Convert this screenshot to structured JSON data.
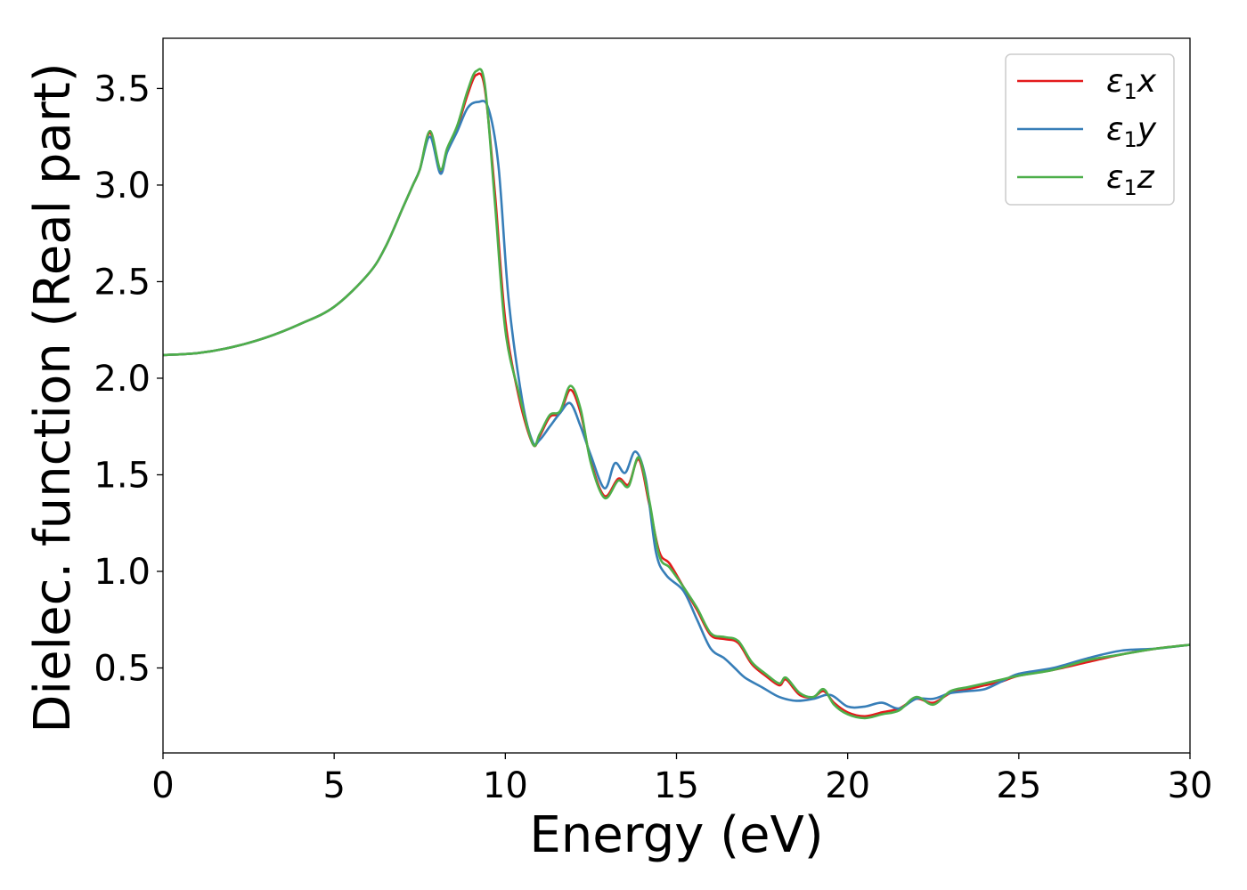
{
  "chart_data": {
    "type": "line",
    "title": "",
    "xlabel": "Energy (eV)",
    "ylabel": "Dielec. function (Real part)",
    "xlim": [
      0,
      30
    ],
    "ylim": [
      0.06,
      3.76
    ],
    "xticks": [
      "0",
      "5",
      "10",
      "15",
      "20",
      "25",
      "30"
    ],
    "yticks": [
      "0.5",
      "1.0",
      "1.5",
      "2.0",
      "2.5",
      "3.0",
      "3.5"
    ],
    "grid": false,
    "legend_position": "top-right",
    "series": [
      {
        "name": "ε₁x",
        "symbol": "ε",
        "sub": "1",
        "axis": "x",
        "color": "#e41a1c",
        "points": [
          [
            0,
            2.12
          ],
          [
            1,
            2.13
          ],
          [
            2,
            2.16
          ],
          [
            3,
            2.21
          ],
          [
            4,
            2.28
          ],
          [
            5,
            2.37
          ],
          [
            6,
            2.54
          ],
          [
            6.5,
            2.68
          ],
          [
            7,
            2.88
          ],
          [
            7.3,
            3.0
          ],
          [
            7.5,
            3.08
          ],
          [
            7.8,
            3.27
          ],
          [
            8.1,
            3.07
          ],
          [
            8.3,
            3.18
          ],
          [
            8.6,
            3.3
          ],
          [
            8.9,
            3.47
          ],
          [
            9.15,
            3.57
          ],
          [
            9.4,
            3.5
          ],
          [
            9.7,
            2.95
          ],
          [
            10.0,
            2.3
          ],
          [
            10.4,
            1.9
          ],
          [
            10.8,
            1.66
          ],
          [
            11.0,
            1.7
          ],
          [
            11.3,
            1.8
          ],
          [
            11.6,
            1.82
          ],
          [
            11.9,
            1.94
          ],
          [
            12.2,
            1.82
          ],
          [
            12.5,
            1.57
          ],
          [
            12.9,
            1.39
          ],
          [
            13.3,
            1.48
          ],
          [
            13.6,
            1.45
          ],
          [
            13.9,
            1.58
          ],
          [
            14.2,
            1.35
          ],
          [
            14.5,
            1.1
          ],
          [
            14.8,
            1.04
          ],
          [
            15.2,
            0.92
          ],
          [
            15.6,
            0.8
          ],
          [
            16.0,
            0.67
          ],
          [
            16.4,
            0.65
          ],
          [
            16.8,
            0.63
          ],
          [
            17.2,
            0.52
          ],
          [
            17.6,
            0.46
          ],
          [
            18.0,
            0.41
          ],
          [
            18.2,
            0.44
          ],
          [
            18.6,
            0.36
          ],
          [
            19.0,
            0.35
          ],
          [
            19.3,
            0.38
          ],
          [
            19.6,
            0.32
          ],
          [
            20.0,
            0.27
          ],
          [
            20.5,
            0.25
          ],
          [
            21.0,
            0.27
          ],
          [
            21.5,
            0.29
          ],
          [
            22.0,
            0.34
          ],
          [
            22.5,
            0.32
          ],
          [
            23.0,
            0.37
          ],
          [
            23.5,
            0.39
          ],
          [
            24.0,
            0.41
          ],
          [
            24.5,
            0.43
          ],
          [
            25.0,
            0.46
          ],
          [
            26.0,
            0.49
          ],
          [
            27.0,
            0.53
          ],
          [
            28.0,
            0.57
          ],
          [
            29.0,
            0.6
          ],
          [
            30.0,
            0.62
          ]
        ]
      },
      {
        "name": "ε₁y",
        "symbol": "ε",
        "sub": "1",
        "axis": "y",
        "color": "#377eb8",
        "points": [
          [
            0,
            2.12
          ],
          [
            1,
            2.13
          ],
          [
            2,
            2.16
          ],
          [
            3,
            2.21
          ],
          [
            4,
            2.28
          ],
          [
            5,
            2.37
          ],
          [
            6,
            2.54
          ],
          [
            6.5,
            2.68
          ],
          [
            7,
            2.88
          ],
          [
            7.3,
            3.0
          ],
          [
            7.5,
            3.08
          ],
          [
            7.8,
            3.25
          ],
          [
            8.1,
            3.06
          ],
          [
            8.3,
            3.17
          ],
          [
            8.6,
            3.28
          ],
          [
            8.9,
            3.4
          ],
          [
            9.2,
            3.43
          ],
          [
            9.5,
            3.4
          ],
          [
            9.8,
            3.1
          ],
          [
            10.1,
            2.4
          ],
          [
            10.5,
            1.88
          ],
          [
            10.8,
            1.67
          ],
          [
            11.0,
            1.68
          ],
          [
            11.3,
            1.75
          ],
          [
            11.6,
            1.82
          ],
          [
            11.9,
            1.87
          ],
          [
            12.2,
            1.75
          ],
          [
            12.5,
            1.6
          ],
          [
            12.9,
            1.43
          ],
          [
            13.2,
            1.56
          ],
          [
            13.5,
            1.51
          ],
          [
            13.8,
            1.62
          ],
          [
            14.1,
            1.48
          ],
          [
            14.4,
            1.1
          ],
          [
            14.7,
            0.98
          ],
          [
            15.2,
            0.9
          ],
          [
            15.6,
            0.75
          ],
          [
            16.0,
            0.6
          ],
          [
            16.4,
            0.55
          ],
          [
            16.7,
            0.5
          ],
          [
            17.0,
            0.45
          ],
          [
            17.5,
            0.4
          ],
          [
            18.0,
            0.35
          ],
          [
            18.5,
            0.33
          ],
          [
            19.0,
            0.34
          ],
          [
            19.5,
            0.36
          ],
          [
            20.0,
            0.3
          ],
          [
            20.5,
            0.3
          ],
          [
            21.0,
            0.32
          ],
          [
            21.5,
            0.29
          ],
          [
            22.0,
            0.34
          ],
          [
            22.5,
            0.34
          ],
          [
            23.0,
            0.37
          ],
          [
            23.5,
            0.38
          ],
          [
            24.0,
            0.39
          ],
          [
            24.5,
            0.43
          ],
          [
            25.0,
            0.47
          ],
          [
            26.0,
            0.5
          ],
          [
            27.0,
            0.55
          ],
          [
            28.0,
            0.59
          ],
          [
            29.0,
            0.6
          ],
          [
            30.0,
            0.62
          ]
        ]
      },
      {
        "name": "ε₁z",
        "symbol": "ε",
        "sub": "1",
        "axis": "z",
        "color": "#4daf4a",
        "points": [
          [
            0,
            2.12
          ],
          [
            1,
            2.13
          ],
          [
            2,
            2.16
          ],
          [
            3,
            2.21
          ],
          [
            4,
            2.28
          ],
          [
            5,
            2.37
          ],
          [
            6,
            2.54
          ],
          [
            6.5,
            2.68
          ],
          [
            7,
            2.88
          ],
          [
            7.3,
            3.0
          ],
          [
            7.5,
            3.08
          ],
          [
            7.8,
            3.28
          ],
          [
            8.1,
            3.08
          ],
          [
            8.3,
            3.19
          ],
          [
            8.6,
            3.31
          ],
          [
            8.9,
            3.49
          ],
          [
            9.15,
            3.59
          ],
          [
            9.4,
            3.52
          ],
          [
            9.7,
            2.9
          ],
          [
            10.0,
            2.25
          ],
          [
            10.4,
            1.92
          ],
          [
            10.8,
            1.66
          ],
          [
            11.0,
            1.71
          ],
          [
            11.3,
            1.81
          ],
          [
            11.6,
            1.83
          ],
          [
            11.9,
            1.96
          ],
          [
            12.2,
            1.84
          ],
          [
            12.5,
            1.56
          ],
          [
            12.9,
            1.38
          ],
          [
            13.3,
            1.47
          ],
          [
            13.6,
            1.44
          ],
          [
            13.9,
            1.59
          ],
          [
            14.2,
            1.37
          ],
          [
            14.5,
            1.08
          ],
          [
            14.8,
            1.02
          ],
          [
            15.2,
            0.92
          ],
          [
            15.6,
            0.81
          ],
          [
            16.0,
            0.68
          ],
          [
            16.4,
            0.66
          ],
          [
            16.8,
            0.64
          ],
          [
            17.2,
            0.53
          ],
          [
            17.6,
            0.47
          ],
          [
            18.0,
            0.42
          ],
          [
            18.2,
            0.45
          ],
          [
            18.6,
            0.37
          ],
          [
            19.0,
            0.35
          ],
          [
            19.3,
            0.39
          ],
          [
            19.6,
            0.31
          ],
          [
            20.0,
            0.26
          ],
          [
            20.5,
            0.24
          ],
          [
            21.0,
            0.26
          ],
          [
            21.5,
            0.28
          ],
          [
            22.0,
            0.35
          ],
          [
            22.5,
            0.31
          ],
          [
            23.0,
            0.38
          ],
          [
            23.5,
            0.4
          ],
          [
            24.0,
            0.42
          ],
          [
            24.5,
            0.44
          ],
          [
            25.0,
            0.46
          ],
          [
            26.0,
            0.49
          ],
          [
            27.0,
            0.54
          ],
          [
            28.0,
            0.57
          ],
          [
            29.0,
            0.6
          ],
          [
            30.0,
            0.62
          ]
        ]
      }
    ]
  }
}
